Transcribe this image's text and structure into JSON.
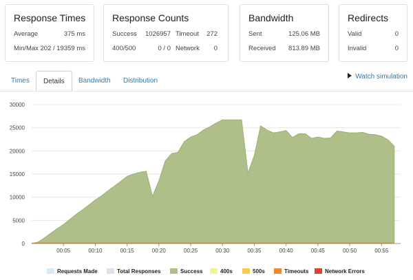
{
  "cards": {
    "response_times": {
      "title": "Response Times",
      "average_label": "Average",
      "average_value": "375 ms",
      "minmax_label": "Min/Max",
      "minmax_value": "202 / 19359 ms"
    },
    "response_counts": {
      "title": "Response Counts",
      "success_label": "Success",
      "success_value": "1026957",
      "timeout_label": "Timeout",
      "timeout_value": "272",
      "err_label": "400/500",
      "err_value": "0 / 0",
      "network_label": "Network",
      "network_value": "0"
    },
    "bandwidth": {
      "title": "Bandwidth",
      "sent_label": "Sent",
      "sent_value": "125.06 MB",
      "received_label": "Received",
      "received_value": "813.89 MB"
    },
    "redirects": {
      "title": "Redirects",
      "valid_label": "Valid",
      "valid_value": "0",
      "invalid_label": "Invalid",
      "invalid_value": "0"
    }
  },
  "tabs": [
    {
      "label": "Times"
    },
    {
      "label": "Details"
    },
    {
      "label": "Bandwidth"
    },
    {
      "label": "Distribution"
    }
  ],
  "watch_label": "Watch simulation",
  "colors": {
    "success_fill": "#aebf8a",
    "success_line": "#9aaf70",
    "timeouts_line": "#e8762c",
    "grid": "#e6e6e6"
  },
  "chart_data": {
    "type": "area",
    "ylim": [
      0,
      30000
    ],
    "yticks": [
      0,
      5000,
      10000,
      15000,
      20000,
      25000,
      30000
    ],
    "xlim": [
      0,
      58
    ],
    "xticks": [
      5,
      10,
      15,
      20,
      25,
      30,
      35,
      40,
      45,
      50,
      55
    ],
    "xtick_labels": [
      "00:05",
      "00:10",
      "00:15",
      "00:20",
      "00:25",
      "00:30",
      "00:35",
      "00:40",
      "00:45",
      "00:50",
      "00:55"
    ],
    "series": [
      {
        "name": "Success",
        "x": [
          0,
          1,
          2,
          3,
          4,
          5,
          6,
          7,
          8,
          9,
          10,
          11,
          12,
          13,
          14,
          15,
          16,
          17,
          18,
          19,
          20,
          21,
          22,
          23,
          24,
          25,
          26,
          27,
          28,
          29,
          30,
          31,
          32,
          33,
          34,
          35,
          36,
          37,
          38,
          39,
          40,
          41,
          42,
          43,
          44,
          45,
          46,
          47,
          48,
          49,
          50,
          51,
          52,
          53,
          54,
          55,
          56,
          57
        ],
        "values": [
          0,
          300,
          1200,
          2200,
          3200,
          4100,
          5200,
          6300,
          7300,
          8300,
          9400,
          10300,
          11400,
          12400,
          13400,
          14500,
          15000,
          15400,
          15600,
          10200,
          13500,
          17800,
          19400,
          19700,
          22000,
          23000,
          23500,
          24500,
          25200,
          26000,
          26700,
          26700,
          26700,
          26700,
          15200,
          19000,
          25400,
          24500,
          23900,
          24100,
          24400,
          22900,
          23700,
          23700,
          22700,
          23000,
          22700,
          22800,
          24300,
          24100,
          23900,
          23900,
          24000,
          23600,
          23500,
          23200,
          22400,
          21000
        ]
      },
      {
        "name": "Timeouts",
        "x": [
          0,
          57
        ],
        "values": [
          0,
          0
        ]
      }
    ],
    "legend": [
      {
        "name": "Requests Made",
        "color": "#dbe7f1"
      },
      {
        "name": "Total Responses",
        "color": "#e7dcec"
      },
      {
        "name": "Success",
        "color": "#aebf8a"
      },
      {
        "name": "400s",
        "color": "#f3f09a"
      },
      {
        "name": "500s",
        "color": "#f2cc55"
      },
      {
        "name": "Timeouts",
        "color": "#ee8a35"
      },
      {
        "name": "Network Errors",
        "color": "#e4402b"
      }
    ]
  }
}
